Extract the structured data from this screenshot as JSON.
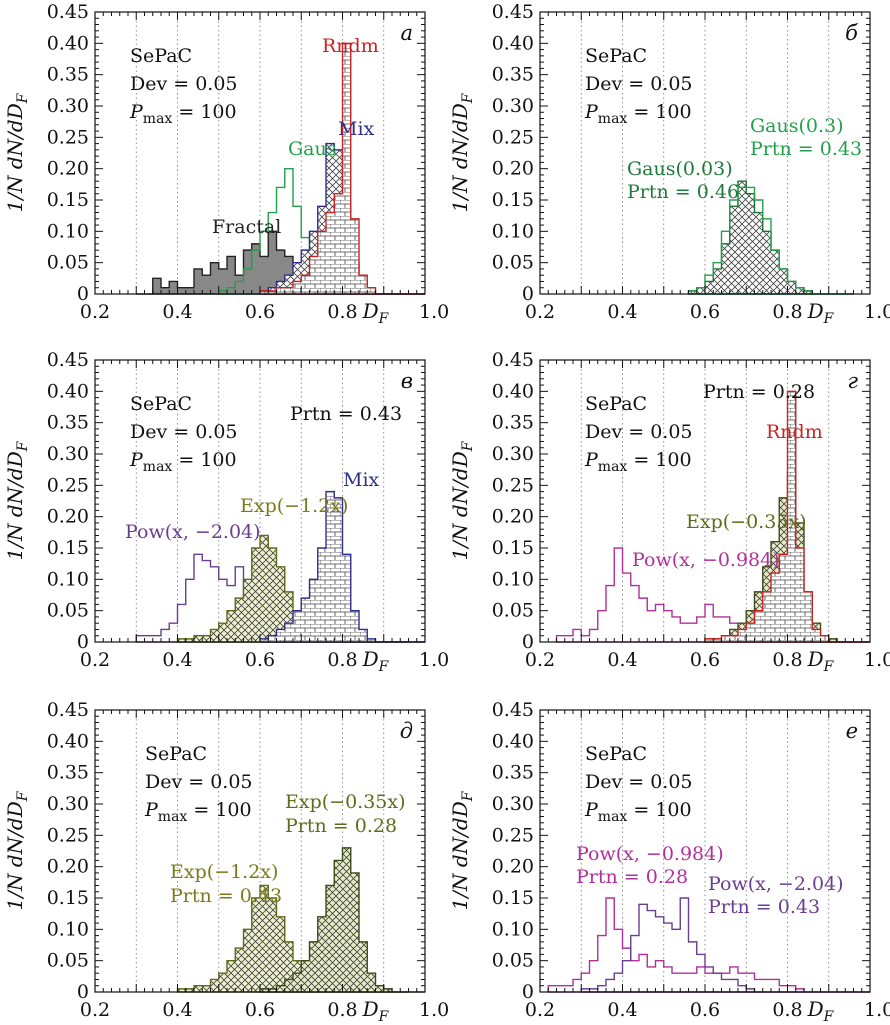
{
  "figure": {
    "y_axis_label": "1/N dN/dD",
    "y_axis_label_sub": "F",
    "x_axis_label": "D",
    "x_axis_label_sub": "F"
  },
  "chart_data": [
    {
      "panel": "а",
      "type": "histogram",
      "xlim": [
        0.2,
        1.0
      ],
      "ylim": [
        0,
        0.45
      ],
      "xticks": [
        "0.2",
        "0.4",
        "0.6",
        "0.8",
        "1.0"
      ],
      "yticks": [
        "0",
        "0.05",
        "0.10",
        "0.15",
        "0.20",
        "0.25",
        "0.30",
        "0.35",
        "0.40",
        "0.45"
      ],
      "grid": "vertical dotted",
      "info": [
        "SePaC",
        "Dev = 0.05",
        "P_max = 100"
      ],
      "annotations": [
        {
          "text": "Rndm",
          "color": "#cc2222"
        },
        {
          "text": "Mix",
          "color": "#2f2f8f"
        },
        {
          "text": "Gaus",
          "color": "#22a04a"
        },
        {
          "text": "Fractal",
          "color": "#222222"
        }
      ],
      "series": [
        {
          "name": "Fractal",
          "color": "#222222",
          "fill": "#888888",
          "pattern": "solid",
          "x_start": 0.3,
          "bin_width": 0.02,
          "values": [
            0,
            0,
            0.025,
            0.01,
            0.02,
            0.01,
            0.01,
            0.04,
            0.03,
            0.05,
            0.04,
            0.06,
            0.03,
            0.07,
            0.08,
            0.06,
            0.1,
            0.07,
            0.06,
            0.04,
            0.05,
            0.06,
            0.07,
            0.04,
            0.03,
            0.01,
            0.005,
            0,
            0,
            0,
            0,
            0,
            0,
            0,
            0
          ]
        },
        {
          "name": "Gaus",
          "color": "#22a04a",
          "fill": "none",
          "pattern": "none",
          "x_start": 0.5,
          "bin_width": 0.02,
          "values": [
            0.005,
            0.01,
            0.02,
            0.04,
            0.07,
            0.1,
            0.13,
            0.17,
            0.2,
            0.14,
            0.09,
            0.05,
            0.02,
            0.01,
            0.005,
            0,
            0,
            0,
            0,
            0,
            0,
            0
          ]
        },
        {
          "name": "Mix",
          "color": "#2f2f8f",
          "fill": "#ffffff",
          "pattern": "crosshatch",
          "x_start": 0.6,
          "bin_width": 0.02,
          "values": [
            0.005,
            0.01,
            0.02,
            0.03,
            0.05,
            0.07,
            0.1,
            0.14,
            0.24,
            0.23,
            0.14,
            0.05,
            0.02,
            0.005,
            0,
            0,
            0,
            0,
            0,
            0,
            0
          ]
        },
        {
          "name": "Rndm",
          "color": "#cc2222",
          "fill": "#ffffff",
          "pattern": "bricks",
          "x_start": 0.6,
          "bin_width": 0.02,
          "values": [
            0.005,
            0.005,
            0.01,
            0.01,
            0.02,
            0.03,
            0.06,
            0.1,
            0.13,
            0.16,
            0.4,
            0.12,
            0.03,
            0.01,
            0,
            0,
            0,
            0,
            0,
            0,
            0
          ]
        }
      ]
    },
    {
      "panel": "б",
      "type": "histogram",
      "xlim": [
        0.2,
        1.0
      ],
      "ylim": [
        0,
        0.45
      ],
      "xticks": [
        "0.2",
        "0.4",
        "0.6",
        "0.8",
        "1.0"
      ],
      "yticks": [
        "0",
        "0.05",
        "0.10",
        "0.15",
        "0.20",
        "0.25",
        "0.30",
        "0.35",
        "0.40",
        "0.45"
      ],
      "grid": "vertical dotted",
      "info": [
        "SePaC",
        "Dev = 0.05",
        "P_max = 100"
      ],
      "annotations": [
        {
          "text": "Gaus(0.3)",
          "color": "#22a04a"
        },
        {
          "text": "Prtn = 0.43",
          "color": "#22a04a"
        },
        {
          "text": "Gaus(0.03)",
          "color": "#1e7a3a"
        },
        {
          "text": "Prtn = 0.46",
          "color": "#1e7a3a"
        }
      ],
      "series": [
        {
          "name": "Gaus(0.03)",
          "color": "#1e6f35",
          "fill": "#ffffff",
          "pattern": "crosshatch",
          "x_start": 0.56,
          "bin_width": 0.02,
          "values": [
            0.005,
            0.01,
            0.02,
            0.04,
            0.08,
            0.14,
            0.18,
            0.16,
            0.13,
            0.1,
            0.07,
            0.04,
            0.02,
            0.01,
            0.005,
            0,
            0,
            0,
            0,
            0
          ]
        },
        {
          "name": "Gaus(0.3)",
          "color": "#22a04a",
          "fill": "none",
          "pattern": "none",
          "x_start": 0.56,
          "bin_width": 0.02,
          "values": [
            0.005,
            0.01,
            0.03,
            0.05,
            0.1,
            0.15,
            0.17,
            0.17,
            0.15,
            0.12,
            0.07,
            0.04,
            0.02,
            0.01,
            0.005,
            0,
            0,
            0,
            0,
            0
          ]
        }
      ]
    },
    {
      "panel": "в",
      "type": "histogram",
      "xlim": [
        0.2,
        1.0
      ],
      "ylim": [
        0,
        0.45
      ],
      "xticks": [
        "0.2",
        "0.4",
        "0.6",
        "0.8",
        "1.0"
      ],
      "yticks": [
        "0",
        "0.05",
        "0.10",
        "0.15",
        "0.20",
        "0.25",
        "0.30",
        "0.35",
        "0.40",
        "0.45"
      ],
      "grid": "vertical dotted",
      "info": [
        "SePaC",
        "Dev = 0.05",
        "P_max = 100"
      ],
      "annotations": [
        {
          "text": "Prtn = 0.43",
          "color": "#111111"
        },
        {
          "text": "Mix",
          "color": "#2f2f8f"
        },
        {
          "text": "Exp(−1.2x)",
          "color": "#7a7a1a"
        },
        {
          "text": "Pow(x, −2.04)",
          "color": "#6a3e8f"
        }
      ],
      "series": [
        {
          "name": "Pow(x, −2.04)",
          "color": "#6a3e8f",
          "fill": "none",
          "pattern": "none",
          "x_start": 0.3,
          "bin_width": 0.02,
          "values": [
            0.01,
            0.01,
            0.01,
            0.02,
            0.03,
            0.06,
            0.1,
            0.14,
            0.13,
            0.12,
            0.1,
            0.09,
            0.12,
            0.07,
            0.05,
            0.04,
            0.03,
            0.02,
            0.02,
            0.01,
            0.01,
            0.005,
            0,
            0,
            0,
            0,
            0,
            0,
            0,
            0,
            0,
            0,
            0,
            0,
            0
          ]
        },
        {
          "name": "Exp(−1.2x)",
          "color": "#5f6b1a",
          "fill": "#eef2d0",
          "pattern": "crosshatch",
          "x_start": 0.4,
          "bin_width": 0.02,
          "values": [
            0.005,
            0.005,
            0.01,
            0.01,
            0.02,
            0.03,
            0.05,
            0.07,
            0.1,
            0.15,
            0.17,
            0.15,
            0.12,
            0.08,
            0.05,
            0.03,
            0.02,
            0.01,
            0.005,
            0,
            0,
            0,
            0,
            0,
            0,
            0,
            0,
            0
          ]
        },
        {
          "name": "Mix",
          "color": "#2f2f8f",
          "fill": "#ffffff",
          "pattern": "bricks",
          "x_start": 0.6,
          "bin_width": 0.02,
          "values": [
            0.005,
            0.01,
            0.02,
            0.03,
            0.05,
            0.07,
            0.1,
            0.15,
            0.24,
            0.23,
            0.14,
            0.05,
            0.02,
            0.005,
            0,
            0,
            0,
            0,
            0,
            0,
            0
          ]
        }
      ]
    },
    {
      "panel": "г",
      "type": "histogram",
      "xlim": [
        0.2,
        1.0
      ],
      "ylim": [
        0,
        0.45
      ],
      "xticks": [
        "0.2",
        "0.4",
        "0.6",
        "0.8",
        "1.0"
      ],
      "yticks": [
        "0",
        "0.05",
        "0.10",
        "0.15",
        "0.20",
        "0.25",
        "0.30",
        "0.35",
        "0.40",
        "0.45"
      ],
      "grid": "vertical dotted",
      "info": [
        "SePaC",
        "Dev = 0.05",
        "P_max = 100"
      ],
      "annotations": [
        {
          "text": "Prtn = 0.28",
          "color": "#111111"
        },
        {
          "text": "Rndm",
          "color": "#cc2222"
        },
        {
          "text": "Exp(−0.35x)",
          "color": "#5f6b1a"
        },
        {
          "text": "Pow(x, −0.984)",
          "color": "#b0309a"
        }
      ],
      "series": [
        {
          "name": "Pow(x, −0.984)",
          "color": "#b0309a",
          "fill": "none",
          "pattern": "none",
          "x_start": 0.24,
          "bin_width": 0.02,
          "values": [
            0.01,
            0.01,
            0.02,
            0.01,
            0.02,
            0.05,
            0.09,
            0.15,
            0.11,
            0.09,
            0.07,
            0.05,
            0.06,
            0.05,
            0.04,
            0.03,
            0.03,
            0.04,
            0.06,
            0.04,
            0.04,
            0.03,
            0.03,
            0.04,
            0.05,
            0.07,
            0.06,
            0.04,
            0.03,
            0.02,
            0.01,
            0.005,
            0,
            0,
            0,
            0,
            0,
            0
          ]
        },
        {
          "name": "Exp(−0.35x)",
          "color": "#3f4a1a",
          "fill": "#e6ebc8",
          "pattern": "crosshatch",
          "x_start": 0.6,
          "bin_width": 0.02,
          "values": [
            0.005,
            0.005,
            0.01,
            0.02,
            0.03,
            0.05,
            0.08,
            0.12,
            0.16,
            0.23,
            0.27,
            0.19,
            0.08,
            0.03,
            0.01,
            0.005,
            0,
            0,
            0,
            0
          ]
        },
        {
          "name": "Rndm",
          "color": "#cc2222",
          "fill": "#ffffff",
          "pattern": "bricks",
          "x_start": 0.6,
          "bin_width": 0.02,
          "values": [
            0.005,
            0.005,
            0.01,
            0.01,
            0.02,
            0.03,
            0.05,
            0.08,
            0.11,
            0.14,
            0.4,
            0.15,
            0.08,
            0.02,
            0.01,
            0,
            0,
            0,
            0,
            0
          ]
        }
      ]
    },
    {
      "panel": "д",
      "type": "histogram",
      "xlim": [
        0.2,
        1.0
      ],
      "ylim": [
        0,
        0.45
      ],
      "xticks": [
        "0.2",
        "0.4",
        "0.6",
        "0.8",
        "1.0"
      ],
      "yticks": [
        "0",
        "0.05",
        "0.10",
        "0.15",
        "0.20",
        "0.25",
        "0.30",
        "0.35",
        "0.40",
        "0.45"
      ],
      "grid": "vertical dotted",
      "info": [
        "SePaC",
        "Dev = 0.05",
        "P_max = 100"
      ],
      "annotations": [
        {
          "text": "Exp(−0.35x)",
          "color": "#5f6b1a"
        },
        {
          "text": "Prtn = 0.28",
          "color": "#5f6b1a"
        },
        {
          "text": "Exp(−1.2x)",
          "color": "#7a7a1a"
        },
        {
          "text": "Prtn = 0.43",
          "color": "#7a7a1a"
        }
      ],
      "series": [
        {
          "name": "Exp(−1.2x)",
          "color": "#5f6b1a",
          "fill": "#eef2d0",
          "pattern": "crosshatch",
          "x_start": 0.4,
          "bin_width": 0.02,
          "values": [
            0.005,
            0.005,
            0.01,
            0.01,
            0.02,
            0.03,
            0.05,
            0.07,
            0.1,
            0.15,
            0.17,
            0.15,
            0.12,
            0.08,
            0.05,
            0.03,
            0.02,
            0.01,
            0.005,
            0,
            0,
            0,
            0,
            0,
            0,
            0,
            0,
            0
          ]
        },
        {
          "name": "Exp(−0.35x)",
          "color": "#3f4a1a",
          "fill": "#e6ebc8",
          "pattern": "crosshatch",
          "x_start": 0.6,
          "bin_width": 0.02,
          "values": [
            0.005,
            0.005,
            0.01,
            0.02,
            0.03,
            0.05,
            0.08,
            0.12,
            0.17,
            0.21,
            0.23,
            0.19,
            0.08,
            0.03,
            0.01,
            0.005,
            0,
            0,
            0,
            0
          ]
        }
      ]
    },
    {
      "panel": "е",
      "type": "histogram",
      "xlim": [
        0.2,
        1.0
      ],
      "ylim": [
        0,
        0.45
      ],
      "xticks": [
        "0.2",
        "0.4",
        "0.6",
        "0.8",
        "1.0"
      ],
      "yticks": [
        "0",
        "0.05",
        "0.10",
        "0.15",
        "0.20",
        "0.25",
        "0.30",
        "0.35",
        "0.40",
        "0.45"
      ],
      "grid": "vertical dotted",
      "info": [
        "SePaC",
        "Dev = 0.05",
        "P_max = 100"
      ],
      "annotations": [
        {
          "text": "Pow(x, −0.984)",
          "color": "#b0309a"
        },
        {
          "text": "Prtn = 0.28",
          "color": "#b0309a"
        },
        {
          "text": "Pow(x, −2.04)",
          "color": "#6a3e8f"
        },
        {
          "text": "Prtn = 0.43",
          "color": "#6a3e8f"
        }
      ],
      "series": [
        {
          "name": "Pow(x, −0.984)",
          "color": "#b0309a",
          "fill": "none",
          "pattern": "none",
          "x_start": 0.22,
          "bin_width": 0.02,
          "values": [
            0.01,
            0.01,
            0.01,
            0.02,
            0.03,
            0.05,
            0.09,
            0.15,
            0.1,
            0.07,
            0.05,
            0.06,
            0.04,
            0.05,
            0.04,
            0.03,
            0.03,
            0.03,
            0.04,
            0.03,
            0.03,
            0.03,
            0.04,
            0.03,
            0.03,
            0.02,
            0.02,
            0.02,
            0.01,
            0.01,
            0.005,
            0,
            0,
            0,
            0,
            0,
            0,
            0,
            0
          ]
        },
        {
          "name": "Pow(x, −2.04)",
          "color": "#6a3e8f",
          "fill": "none",
          "pattern": "none",
          "x_start": 0.3,
          "bin_width": 0.02,
          "values": [
            0.005,
            0.005,
            0.01,
            0.02,
            0.03,
            0.05,
            0.09,
            0.14,
            0.13,
            0.12,
            0.11,
            0.1,
            0.15,
            0.08,
            0.06,
            0.04,
            0.03,
            0.02,
            0.02,
            0.01,
            0.005,
            0,
            0,
            0,
            0,
            0,
            0,
            0,
            0,
            0,
            0,
            0,
            0,
            0,
            0
          ]
        }
      ]
    }
  ]
}
